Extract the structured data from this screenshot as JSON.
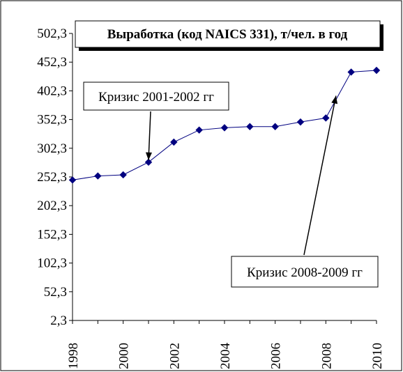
{
  "chart_data": {
    "type": "line",
    "title": "Выработка (код NAICS 331), т/чел. в год",
    "xlabel": "",
    "ylabel": "",
    "x": [
      1998,
      1999,
      2000,
      2001,
      2002,
      2003,
      2004,
      2005,
      2006,
      2007,
      2008,
      2009,
      2010
    ],
    "series": [
      {
        "values": [
          247,
          254,
          256,
          278,
          313,
          334,
          338,
          340,
          340,
          348,
          355,
          435,
          438
        ]
      }
    ],
    "ylim": [
      2.3,
      502.3
    ],
    "y_ticks": [
      "2,3",
      "52,3",
      "102,3",
      "152,3",
      "202,3",
      "252,3",
      "302,3",
      "352,3",
      "402,3",
      "452,3",
      "502,3"
    ],
    "x_ticks": [
      "1998",
      "2000",
      "2002",
      "2004",
      "2006",
      "2008",
      "2010"
    ],
    "grid": false,
    "colors": {
      "line": "#000080",
      "marker": "#000080",
      "axis": "#000000",
      "border": "#000000"
    },
    "annotations": [
      {
        "text": "Кризис 2001-2002 гг",
        "target_x": 2001,
        "target_y": 278
      },
      {
        "text": "Кризис 2008-2009 гг",
        "target_x": 2008.4,
        "target_y": 390
      }
    ]
  }
}
